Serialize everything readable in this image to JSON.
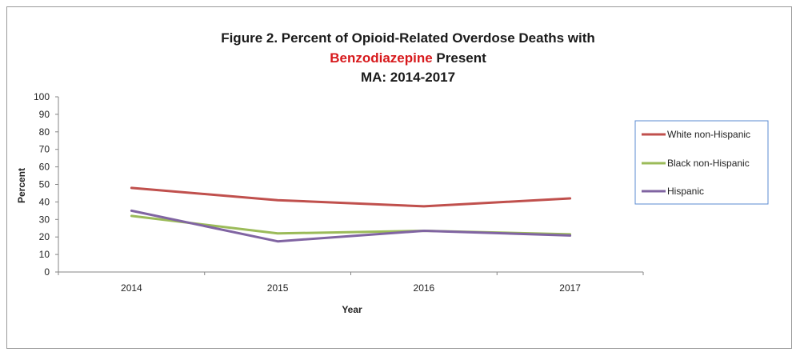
{
  "chart_data": {
    "type": "line",
    "title_line1": "Figure 2. Percent of Opioid-Related  Overdose Deaths with",
    "title_line2_highlight": "Benzodiazepine",
    "title_line2_rest": " Present",
    "title_line3": "MA: 2014-2017",
    "highlight_color": "#d7191c",
    "xlabel": "Year",
    "ylabel": "Percent",
    "ylim": [
      0,
      100
    ],
    "yticks": [
      "0",
      "10",
      "20",
      "30",
      "40",
      "50",
      "60",
      "70",
      "80",
      "90",
      "100"
    ],
    "categories": [
      "2014",
      "2015",
      "2016",
      "2017"
    ],
    "grid": false,
    "legend_position": "right",
    "series": [
      {
        "name": "White non-Hispanic",
        "color": "#c0504d",
        "values": [
          48,
          41,
          37.5,
          42
        ]
      },
      {
        "name": "Black non-Hispanic",
        "color": "#9bbb59",
        "values": [
          32,
          22,
          23.5,
          21.5
        ]
      },
      {
        "name": "Hispanic",
        "color": "#8064a2",
        "values": [
          35,
          17.5,
          23.5,
          20.8
        ]
      }
    ]
  }
}
